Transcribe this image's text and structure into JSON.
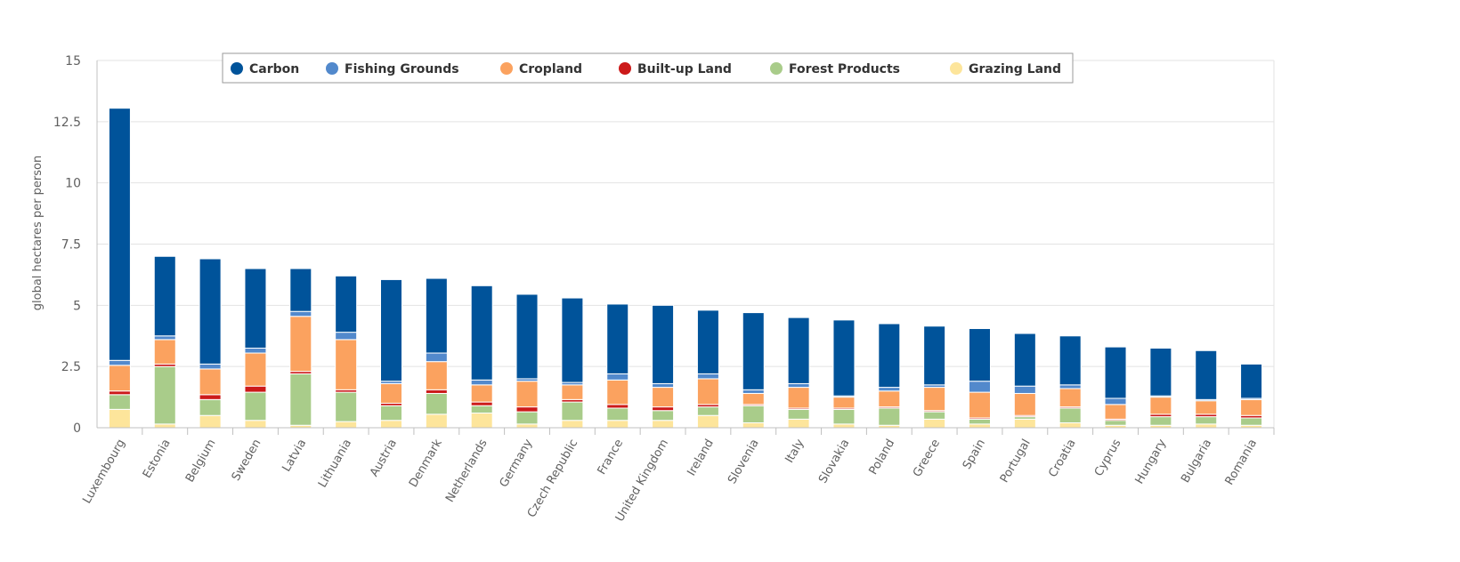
{
  "chart_data": {
    "type": "bar",
    "stacked": true,
    "title": "",
    "xlabel": "",
    "ylabel": "global hectares per person",
    "ylim": [
      0,
      15
    ],
    "yticks": [
      0,
      2.5,
      5,
      7.5,
      10,
      12.5,
      15
    ],
    "ytick_labels": [
      "0",
      "2.5",
      "5",
      "7.5",
      "10",
      "12.5",
      "15"
    ],
    "grid": true,
    "legend_position": "top",
    "categories": [
      "Luxembourg",
      "Estonia",
      "Belgium",
      "Sweden",
      "Latvia",
      "Lithuania",
      "Austria",
      "Denmark",
      "Netherlands",
      "Germany",
      "Czech Republic",
      "France",
      "United Kingdom",
      "Ireland",
      "Slovenia",
      "Italy",
      "Slovakia",
      "Poland",
      "Greece",
      "Spain",
      "Portugal",
      "Croatia",
      "Cyprus",
      "Hungary",
      "Bulgaria",
      "Romania"
    ],
    "series": [
      {
        "name": "Grazing Land",
        "color": "#fde59b",
        "values": [
          0.75,
          0.15,
          0.5,
          0.3,
          0.1,
          0.25,
          0.3,
          0.55,
          0.6,
          0.15,
          0.3,
          0.3,
          0.3,
          0.5,
          0.2,
          0.35,
          0.15,
          0.1,
          0.35,
          0.15,
          0.35,
          0.2,
          0.1,
          0.1,
          0.15,
          0.1
        ]
      },
      {
        "name": "Forest Products",
        "color": "#a9cc8a",
        "values": [
          0.6,
          2.35,
          0.65,
          1.15,
          2.1,
          1.2,
          0.6,
          0.85,
          0.3,
          0.5,
          0.75,
          0.5,
          0.4,
          0.35,
          0.7,
          0.4,
          0.6,
          0.7,
          0.3,
          0.2,
          0.1,
          0.6,
          0.2,
          0.35,
          0.3,
          0.3
        ]
      },
      {
        "name": "Built-up Land",
        "color": "#cc1a1a",
        "values": [
          0.15,
          0.1,
          0.2,
          0.25,
          0.1,
          0.1,
          0.1,
          0.15,
          0.15,
          0.2,
          0.1,
          0.15,
          0.15,
          0.1,
          0.05,
          0.05,
          0.05,
          0.05,
          0.05,
          0.05,
          0.05,
          0.05,
          0.05,
          0.1,
          0.1,
          0.1
        ]
      },
      {
        "name": "Cropland",
        "color": "#fba25f",
        "values": [
          1.05,
          1.0,
          1.05,
          1.35,
          2.25,
          2.05,
          0.8,
          1.15,
          0.7,
          1.05,
          0.6,
          1.0,
          0.8,
          1.05,
          0.45,
          0.85,
          0.45,
          0.65,
          0.95,
          1.05,
          0.9,
          0.75,
          0.6,
          0.7,
          0.55,
          0.65
        ]
      },
      {
        "name": "Fishing Grounds",
        "color": "#5289cc",
        "values": [
          0.2,
          0.15,
          0.2,
          0.2,
          0.2,
          0.3,
          0.1,
          0.35,
          0.2,
          0.1,
          0.1,
          0.25,
          0.15,
          0.2,
          0.15,
          0.15,
          0.05,
          0.15,
          0.1,
          0.45,
          0.3,
          0.15,
          0.25,
          0.05,
          0.05,
          0.05
        ]
      },
      {
        "name": "Carbon",
        "color": "#00539a",
        "values": [
          10.3,
          3.25,
          4.3,
          3.25,
          1.75,
          2.3,
          4.15,
          3.05,
          3.85,
          3.45,
          3.45,
          2.85,
          3.2,
          2.6,
          3.15,
          2.7,
          3.1,
          2.6,
          2.4,
          2.15,
          2.15,
          2.0,
          2.1,
          1.95,
          2.0,
          1.4
        ]
      }
    ]
  },
  "legend": {
    "items": [
      {
        "label": "Carbon",
        "color": "#00539a"
      },
      {
        "label": "Fishing Grounds",
        "color": "#5289cc"
      },
      {
        "label": "Cropland",
        "color": "#fba25f"
      },
      {
        "label": "Built-up Land",
        "color": "#cc1a1a"
      },
      {
        "label": "Forest Products",
        "color": "#a9cc8a"
      },
      {
        "label": "Grazing Land",
        "color": "#fde59b"
      }
    ]
  }
}
